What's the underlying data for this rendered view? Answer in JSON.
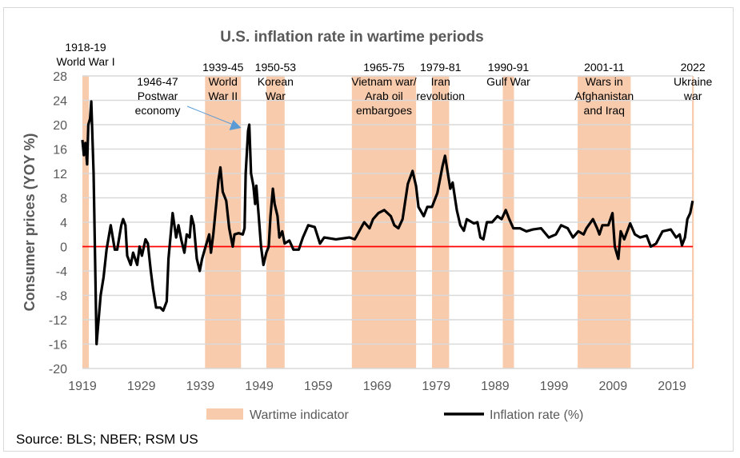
{
  "chart_data": {
    "type": "line",
    "title": "U.S. inflation rate in wartime periods",
    "xlabel": "",
    "ylabel": "Consumer prices (YOY %)",
    "ylim": [
      -20,
      28
    ],
    "yticks": [
      28,
      24,
      20,
      16,
      12,
      8,
      4,
      0,
      -4,
      -8,
      -12,
      -16,
      -20
    ],
    "xlim": [
      1919,
      2022.7
    ],
    "xticks": [
      1919,
      1929,
      1939,
      1949,
      1959,
      1969,
      1979,
      1989,
      1999,
      2009,
      2019
    ],
    "grid": "horizontal",
    "zero_line_color": "#FF0000",
    "legend_placement": "bottom",
    "legend": [
      {
        "label": "Wartime indicator",
        "color": "#F8CBAD",
        "kind": "area"
      },
      {
        "label": "Inflation rate (%)",
        "color": "#000000",
        "kind": "line"
      }
    ],
    "bands": [
      {
        "start": 1919.0,
        "end": 1920.1,
        "label": [
          "1918-19",
          "World War I"
        ]
      },
      {
        "start": 1939.8,
        "end": 1945.9,
        "label": [
          "1939-45",
          "World",
          "War II"
        ]
      },
      {
        "start": 1950.2,
        "end": 1953.3,
        "label": [
          "1950-53",
          "Korean",
          "War"
        ]
      },
      {
        "start": 1964.7,
        "end": 1975.6,
        "label": [
          "1965-75",
          "Vietnam war/",
          "Arab oil",
          "embargoes"
        ]
      },
      {
        "start": 1978.3,
        "end": 1981.2,
        "label": [
          "1979-81",
          "Iran",
          "revolution"
        ]
      },
      {
        "start": 1990.3,
        "end": 1992.2,
        "label": [
          "1990-91",
          "Gulf War"
        ]
      },
      {
        "start": 2003.0,
        "end": 2012.0,
        "label": [
          "2001-11",
          "Wars in",
          "Afghanistan",
          "and Iraq"
        ]
      },
      {
        "start": 2022.4,
        "end": 2022.7,
        "label": [
          "2022",
          "Ukraine",
          "war"
        ]
      }
    ],
    "annotation": {
      "label": [
        "1946-47",
        "Postwar",
        "economy"
      ],
      "arrow_color": "#5B9BD5",
      "points_to": [
        1947.3,
        20
      ]
    },
    "series": [
      {
        "name": "Inflation rate (%)",
        "color": "#000000",
        "points": [
          [
            1919.0,
            17.5
          ],
          [
            1919.25,
            15
          ],
          [
            1919.5,
            17
          ],
          [
            1919.8,
            13.5
          ],
          [
            1920.0,
            20
          ],
          [
            1920.3,
            21
          ],
          [
            1920.5,
            23.8
          ],
          [
            1920.9,
            12
          ],
          [
            1921.4,
            -16
          ],
          [
            1922.1,
            -8
          ],
          [
            1922.6,
            -5
          ],
          [
            1923.1,
            -0.5
          ],
          [
            1923.8,
            3.5
          ],
          [
            1924.5,
            -0.5
          ],
          [
            1924.9,
            -0.5
          ],
          [
            1925.6,
            3.5
          ],
          [
            1925.9,
            4.5
          ],
          [
            1926.3,
            3.5
          ],
          [
            1926.6,
            -1.5
          ],
          [
            1927.2,
            -3
          ],
          [
            1927.6,
            -1
          ],
          [
            1928.3,
            -3
          ],
          [
            1928.7,
            0
          ],
          [
            1929.1,
            -1.5
          ],
          [
            1929.7,
            1.2
          ],
          [
            1930.1,
            0.5
          ],
          [
            1930.6,
            -4
          ],
          [
            1931.0,
            -7
          ],
          [
            1931.5,
            -10
          ],
          [
            1932.2,
            -10
          ],
          [
            1932.7,
            -10.5
          ],
          [
            1933.3,
            -9
          ],
          [
            1933.6,
            -2
          ],
          [
            1934.3,
            5.5
          ],
          [
            1934.9,
            1.5
          ],
          [
            1935.3,
            3.5
          ],
          [
            1935.8,
            1
          ],
          [
            1936.3,
            -1
          ],
          [
            1936.7,
            2
          ],
          [
            1937.2,
            1.5
          ],
          [
            1937.5,
            5
          ],
          [
            1937.9,
            3.5
          ],
          [
            1938.4,
            -2
          ],
          [
            1938.9,
            -4
          ],
          [
            1939.3,
            -2
          ],
          [
            1939.9,
            0
          ],
          [
            1940.5,
            2
          ],
          [
            1940.8,
            -1
          ],
          [
            1941.2,
            2
          ],
          [
            1941.7,
            7
          ],
          [
            1942.1,
            11
          ],
          [
            1942.4,
            13
          ],
          [
            1942.8,
            9
          ],
          [
            1943.4,
            7.5
          ],
          [
            1943.9,
            3
          ],
          [
            1944.5,
            0
          ],
          [
            1944.8,
            2
          ],
          [
            1945.5,
            2.2
          ],
          [
            1946.2,
            2
          ],
          [
            1946.5,
            3
          ],
          [
            1946.7,
            12
          ],
          [
            1947.1,
            19
          ],
          [
            1947.3,
            20
          ],
          [
            1947.6,
            12
          ],
          [
            1948.0,
            10
          ],
          [
            1948.3,
            7
          ],
          [
            1948.5,
            10
          ],
          [
            1948.9,
            5
          ],
          [
            1949.3,
            0
          ],
          [
            1949.7,
            -3
          ],
          [
            1950.2,
            -1
          ],
          [
            1950.6,
            0
          ],
          [
            1950.9,
            5
          ],
          [
            1951.3,
            9.5
          ],
          [
            1951.6,
            7
          ],
          [
            1952.1,
            5
          ],
          [
            1952.4,
            1.5
          ],
          [
            1952.9,
            2.5
          ],
          [
            1953.3,
            0.5
          ],
          [
            1954.1,
            1
          ],
          [
            1954.8,
            -0.5
          ],
          [
            1955.7,
            -0.5
          ],
          [
            1956.4,
            1.5
          ],
          [
            1957.3,
            3.5
          ],
          [
            1958.4,
            3.2
          ],
          [
            1959.3,
            0.5
          ],
          [
            1960.0,
            1.5
          ],
          [
            1962.0,
            1.2
          ],
          [
            1964.3,
            1.5
          ],
          [
            1965.2,
            1.2
          ],
          [
            1966.5,
            3.5
          ],
          [
            1966.8,
            4
          ],
          [
            1967.7,
            3
          ],
          [
            1968.3,
            4.5
          ],
          [
            1969.2,
            5.5
          ],
          [
            1970.2,
            6
          ],
          [
            1971.3,
            5
          ],
          [
            1971.9,
            3.5
          ],
          [
            1972.6,
            3
          ],
          [
            1973.3,
            4.5
          ],
          [
            1974.2,
            10.3
          ],
          [
            1975.0,
            12.4
          ],
          [
            1975.6,
            9.9
          ],
          [
            1976.0,
            6.5
          ],
          [
            1976.9,
            5
          ],
          [
            1977.5,
            6.5
          ],
          [
            1978.3,
            6.5
          ],
          [
            1979.2,
            8.8
          ],
          [
            1980.1,
            13.3
          ],
          [
            1980.5,
            14.9
          ],
          [
            1980.9,
            12.5
          ],
          [
            1981.4,
            9.5
          ],
          [
            1981.8,
            10.5
          ],
          [
            1982.5,
            6
          ],
          [
            1983.1,
            3.5
          ],
          [
            1983.7,
            2.6
          ],
          [
            1984.2,
            4.5
          ],
          [
            1985.4,
            3.8
          ],
          [
            1986.0,
            4
          ],
          [
            1986.5,
            1.5
          ],
          [
            1987.0,
            1.2
          ],
          [
            1987.6,
            4
          ],
          [
            1988.5,
            4
          ],
          [
            1989.4,
            5
          ],
          [
            1990.1,
            4.5
          ],
          [
            1990.8,
            6
          ],
          [
            1991.4,
            4.5
          ],
          [
            1992.1,
            3
          ],
          [
            1993.2,
            3
          ],
          [
            1994.3,
            2.5
          ],
          [
            1995.4,
            2.8
          ],
          [
            1996.8,
            3
          ],
          [
            1998.1,
            1.5
          ],
          [
            1999.3,
            2
          ],
          [
            2000.2,
            3.5
          ],
          [
            2001.3,
            3
          ],
          [
            2002.2,
            1.5
          ],
          [
            2003.1,
            2.5
          ],
          [
            2004.0,
            2
          ],
          [
            2004.5,
            3
          ],
          [
            2005.6,
            4.5
          ],
          [
            2006.3,
            3
          ],
          [
            2006.7,
            2
          ],
          [
            2007.2,
            3.5
          ],
          [
            2008.2,
            3.5
          ],
          [
            2008.9,
            5.5
          ],
          [
            2009.3,
            0
          ],
          [
            2009.9,
            -2
          ],
          [
            2010.3,
            2.5
          ],
          [
            2010.9,
            1.2
          ],
          [
            2011.9,
            3.8
          ],
          [
            2012.7,
            2
          ],
          [
            2013.6,
            1.5
          ],
          [
            2014.7,
            1.8
          ],
          [
            2015.4,
            0
          ],
          [
            2016.3,
            0.5
          ],
          [
            2017.4,
            2.5
          ],
          [
            2018.8,
            2.8
          ],
          [
            2019.7,
            1.5
          ],
          [
            2020.3,
            2
          ],
          [
            2020.7,
            0.2
          ],
          [
            2021.2,
            1.5
          ],
          [
            2021.6,
            4.5
          ],
          [
            2022.1,
            5.5
          ],
          [
            2022.5,
            7.5
          ]
        ]
      }
    ],
    "source": "Source: BLS; NBER; RSM US"
  }
}
